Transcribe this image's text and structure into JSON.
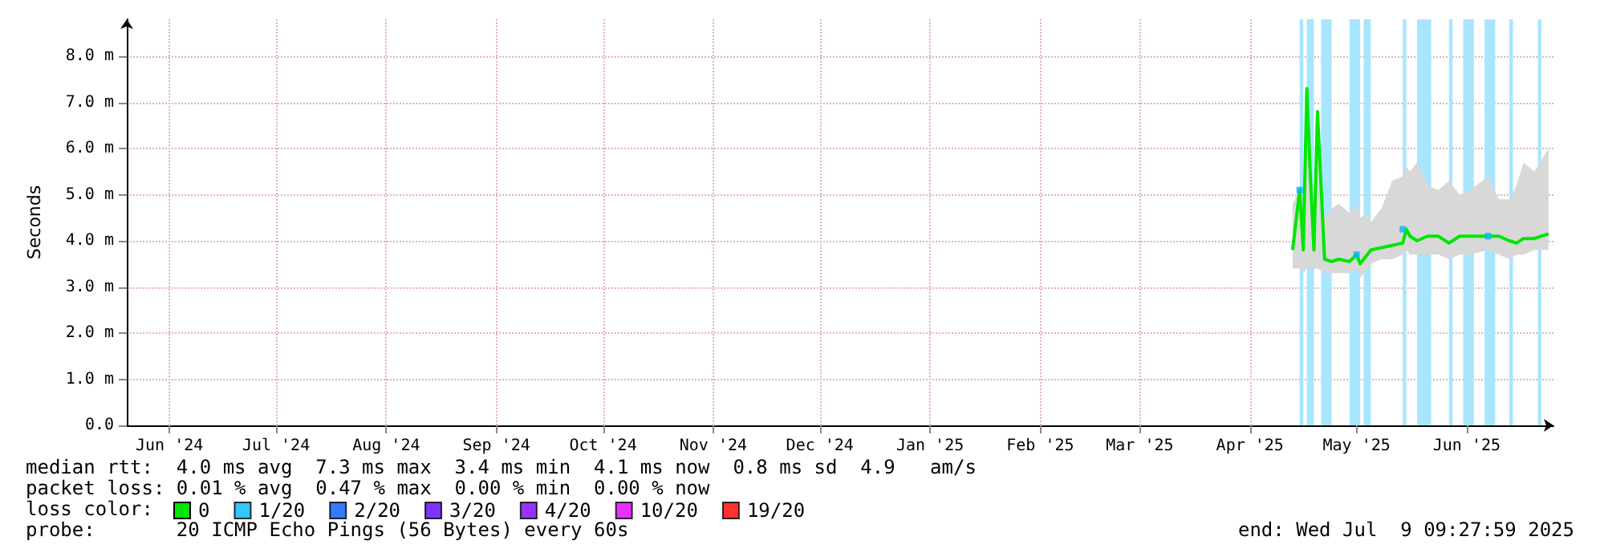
{
  "chart_data": {
    "type": "line",
    "ylabel": "Seconds",
    "legend_title": "loss color:",
    "legend": "bottom",
    "grid": true,
    "xlim": [
      "2024-06-03",
      "2025-07-09T09:27"
    ],
    "xticks": [
      {
        "value": "2024-06-15",
        "label": "Jun '24"
      },
      {
        "value": "2024-07-15",
        "label": "Jul '24"
      },
      {
        "value": "2024-08-15",
        "label": "Aug '24"
      },
      {
        "value": "2024-09-15",
        "label": "Sep '24"
      },
      {
        "value": "2024-10-15",
        "label": "Oct '24"
      },
      {
        "value": "2024-11-15",
        "label": "Nov '24"
      },
      {
        "value": "2024-12-15",
        "label": "Dec '24"
      },
      {
        "value": "2025-01-15",
        "label": "Jan '25"
      },
      {
        "value": "2025-02-15",
        "label": "Feb '25"
      },
      {
        "value": "2025-03-15",
        "label": "Mar '25"
      },
      {
        "value": "2025-04-15",
        "label": "Apr '25"
      },
      {
        "value": "2025-05-15",
        "label": "May '25"
      },
      {
        "value": "2025-06-15",
        "label": "Jun '25"
      }
    ],
    "ylim": [
      0,
      8.8
    ],
    "yticks": [
      {
        "value": 0,
        "label": "0.0"
      },
      {
        "value": 1,
        "label": "1.0 m"
      },
      {
        "value": 2,
        "label": "2.0 m"
      },
      {
        "value": 3,
        "label": "3.0 m"
      },
      {
        "value": 4,
        "label": "4.0 m"
      },
      {
        "value": 5,
        "label": "5.0 m"
      },
      {
        "value": 6,
        "label": "6.0 m"
      },
      {
        "value": 7,
        "label": "7.0 m"
      },
      {
        "value": 8,
        "label": "8.0 m"
      }
    ],
    "series": [
      {
        "name": "0",
        "color": "#00e600",
        "x": [
          "2025-04-27",
          "2025-04-29",
          "2025-04-30",
          "2025-05-01",
          "2025-05-02",
          "2025-05-03",
          "2025-05-04",
          "2025-05-06",
          "2025-05-08",
          "2025-05-10",
          "2025-05-13",
          "2025-05-15",
          "2025-05-16",
          "2025-05-18",
          "2025-05-19",
          "2025-05-22",
          "2025-05-25",
          "2025-05-28",
          "2025-05-29",
          "2025-05-30",
          "2025-06-01",
          "2025-06-04",
          "2025-06-07",
          "2025-06-10",
          "2025-06-13",
          "2025-06-16",
          "2025-06-21",
          "2025-06-24",
          "2025-06-27",
          "2025-06-29",
          "2025-07-01",
          "2025-07-04",
          "2025-07-08"
        ],
        "values": [
          3.8,
          5.1,
          3.8,
          7.3,
          5.4,
          3.8,
          6.8,
          3.6,
          3.55,
          3.6,
          3.55,
          3.7,
          3.5,
          3.7,
          3.8,
          3.85,
          3.9,
          3.95,
          4.25,
          4.1,
          4.0,
          4.1,
          4.1,
          3.95,
          4.1,
          4.1,
          4.1,
          4.1,
          4.0,
          3.95,
          4.05,
          4.05,
          4.15
        ],
        "upper": [
          4.8,
          5.1,
          4.9,
          7.3,
          5.5,
          4.8,
          6.8,
          4.5,
          4.7,
          4.8,
          4.6,
          4.8,
          4.5,
          4.6,
          4.4,
          4.7,
          5.3,
          5.4,
          5.6,
          5.5,
          5.7,
          5.2,
          5.1,
          5.3,
          5.0,
          5.1,
          5.4,
          4.9,
          4.9,
          5.2,
          5.7,
          5.5,
          6.0
        ],
        "lower": [
          3.4,
          3.4,
          3.3,
          3.4,
          3.4,
          3.4,
          3.4,
          3.3,
          3.3,
          3.3,
          3.3,
          3.4,
          3.2,
          3.4,
          3.5,
          3.6,
          3.6,
          3.7,
          3.8,
          3.7,
          3.7,
          3.7,
          3.7,
          3.6,
          3.7,
          3.7,
          3.8,
          3.7,
          3.6,
          3.7,
          3.7,
          3.8,
          3.8
        ]
      },
      {
        "name": "1/20",
        "color": "#00b8ff",
        "type": "scatter",
        "x": [
          "2025-04-29",
          "2025-05-15",
          "2025-05-28",
          "2025-06-21"
        ],
        "values": [
          5.1,
          3.7,
          4.25,
          4.1
        ]
      },
      {
        "name": "2/20",
        "color": "#0059ff",
        "type": "scatter"
      },
      {
        "name": "3/20",
        "color": "#5e00ff",
        "type": "scatter"
      },
      {
        "name": "4/20",
        "color": "#7e00ff",
        "type": "scatter"
      },
      {
        "name": "10/20",
        "color": "#dd00ff",
        "type": "scatter"
      },
      {
        "name": "19/20",
        "color": "#ff0000",
        "type": "scatter"
      }
    ],
    "bands": [
      {
        "axis": "x",
        "from": "2025-04-29",
        "to": "2025-04-30",
        "color": "#a8e6ff"
      },
      {
        "axis": "x",
        "from": "2025-05-01",
        "to": "2025-05-03",
        "color": "#a8e6ff"
      },
      {
        "axis": "x",
        "from": "2025-05-05",
        "to": "2025-05-08",
        "color": "#a8e6ff"
      },
      {
        "axis": "x",
        "from": "2025-05-13",
        "to": "2025-05-16",
        "color": "#a8e6ff"
      },
      {
        "axis": "x",
        "from": "2025-05-17",
        "to": "2025-05-19",
        "color": "#a8e6ff"
      },
      {
        "axis": "x",
        "from": "2025-05-28",
        "to": "2025-05-29",
        "color": "#a8e6ff"
      },
      {
        "axis": "x",
        "from": "2025-06-01",
        "to": "2025-06-05",
        "color": "#a8e6ff"
      },
      {
        "axis": "x",
        "from": "2025-06-10",
        "to": "2025-06-11",
        "color": "#a8e6ff"
      },
      {
        "axis": "x",
        "from": "2025-06-14",
        "to": "2025-06-17",
        "color": "#a8e6ff"
      },
      {
        "axis": "x",
        "from": "2025-06-20",
        "to": "2025-06-23",
        "color": "#a8e6ff"
      },
      {
        "axis": "x",
        "from": "2025-06-27",
        "to": "2025-06-28",
        "color": "#a8e6ff"
      },
      {
        "axis": "x",
        "from": "2025-07-05",
        "to": "2025-07-06",
        "color": "#a8e6ff"
      }
    ],
    "annotations": [
      "median rtt:  4.0 ms avg  7.3 ms max  3.4 ms min  4.1 ms now  0.8 ms sd  4.9   am/s",
      "packet loss: 0.01 % avg  0.47 % max  0.00 % min  0.00 % now",
      "probe:       20 ICMP Echo Pings (56 Bytes) every 60s",
      "end: Wed Jul  9 09:27:59 2025"
    ]
  }
}
